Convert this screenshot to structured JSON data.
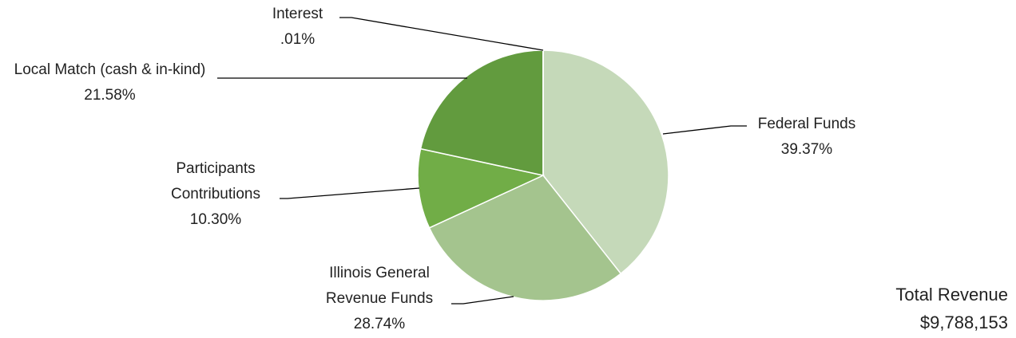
{
  "chart_data": {
    "type": "pie",
    "categories": [
      "Federal Funds",
      "Illinois General Revenue Funds",
      "Participants Contributions",
      "Local Match (cash & in-kind)",
      "Interest"
    ],
    "values": [
      39.37,
      28.74,
      10.3,
      21.58,
      0.01
    ],
    "value_labels": [
      "39.37%",
      "28.74%",
      "10.30%",
      "21.58%",
      ".01%"
    ],
    "colors": [
      "#c5d9b9",
      "#a4c48e",
      "#71ad47",
      "#629b3e",
      "#4e7d30"
    ],
    "annotations": [
      "Total Revenue",
      "$9,788,153"
    ]
  }
}
